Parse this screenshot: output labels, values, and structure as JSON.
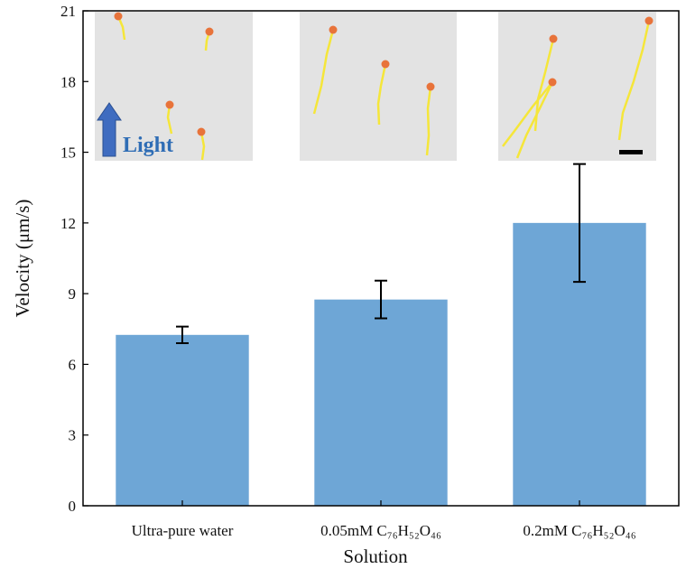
{
  "chart_data": {
    "type": "bar",
    "categories": [
      "Ultra-pure water",
      "0.05mM C₇₆H₅₂O₄₆",
      "0.2mM C₇₆H₅₂O₄₆"
    ],
    "values": [
      7.25,
      8.75,
      12.0
    ],
    "errors": [
      0.35,
      0.8,
      2.5
    ],
    "color": "#6ea6d6",
    "x_label": "Solution",
    "y_label": "Velocity (μm/s)",
    "annotation": "Light",
    "ylim": [
      0,
      21
    ],
    "yticks": [
      0,
      3,
      6,
      9,
      12,
      15,
      18,
      21
    ],
    "grid": false
  }
}
